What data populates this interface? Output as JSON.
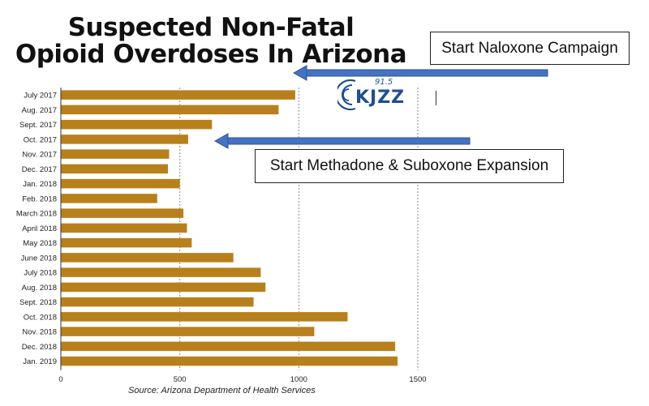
{
  "title_line1": "Suspected Non-Fatal",
  "title_line2": "Opioid Overdoses In Arizona",
  "callouts": {
    "naloxone": "Start Naloxone Campaign",
    "methadone": "Start Methadone & Suboxone Expansion"
  },
  "logo": {
    "text": "KJZZ",
    "frequency": "91.5"
  },
  "source": "Source: Arizona Department of Health Services",
  "colors": {
    "bar": "#b8801c",
    "arrow": "#4472c4",
    "grid": "#8a8a8a",
    "logo": "#1f4f8f"
  },
  "chart_data": {
    "type": "bar",
    "orientation": "horizontal",
    "categories": [
      "July 2017",
      "Aug. 2017",
      "Sept. 2017",
      "Oct. 2017",
      "Nov. 2017",
      "Dec. 2017",
      "Jan. 2018",
      "Feb. 2018",
      "March 2018",
      "April 2018",
      "May 2018",
      "June 2018",
      "July 2018",
      "Aug. 2018",
      "Sept. 2018",
      "Oct. 2018",
      "Nov. 2018",
      "Dec. 2018",
      "Jan. 2019"
    ],
    "values": [
      985,
      915,
      635,
      535,
      455,
      450,
      500,
      405,
      515,
      530,
      550,
      725,
      840,
      860,
      810,
      1205,
      1065,
      1405,
      1415
    ],
    "xlim": [
      0,
      1500
    ],
    "xticks": [
      0,
      500,
      1000,
      1500
    ],
    "grid": "vertical dotted",
    "annotations": [
      {
        "text": "Start Naloxone Campaign",
        "points_to": "July 2017"
      },
      {
        "text": "Start Methadone & Suboxone Expansion",
        "points_to": "Oct. 2017"
      }
    ]
  }
}
